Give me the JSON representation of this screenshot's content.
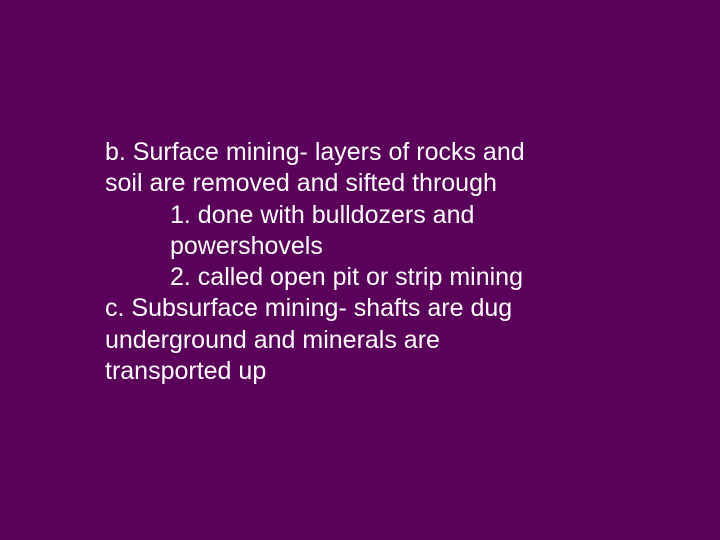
{
  "slide": {
    "background_color": "#5a005a",
    "text_color": "#ffffff",
    "font_size": 25,
    "lines": [
      {
        "text": "b.  Surface mining-  layers of rocks and",
        "indent": 0
      },
      {
        "text": "soil are removed and sifted through",
        "indent": 0
      },
      {
        "text": "1.  done with bulldozers and",
        "indent": 1
      },
      {
        "text": "powershovels",
        "indent": 1
      },
      {
        "text": "2.  called open pit or strip mining",
        "indent": 1
      },
      {
        "text": "c.  Subsurface mining- shafts are dug",
        "indent": 0
      },
      {
        "text": "underground and minerals are",
        "indent": 0
      },
      {
        "text": "transported up",
        "indent": 0
      }
    ]
  }
}
